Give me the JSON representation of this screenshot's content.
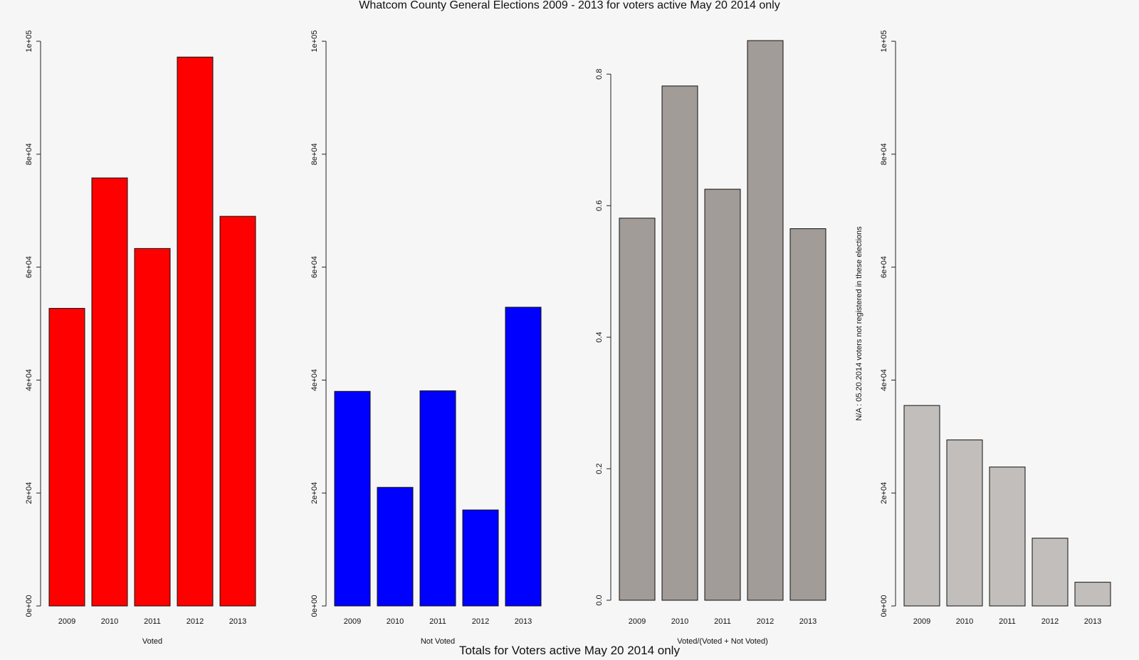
{
  "title": "Whatcom County General Elections 2009 - 2013 for voters active May 20 2014 only",
  "subtitle": "Totals for Voters active May 20 2014 only",
  "chart_data": [
    {
      "type": "bar",
      "categories": [
        "2009",
        "2010",
        "2011",
        "2012",
        "2013"
      ],
      "values": [
        52700,
        75800,
        63300,
        97200,
        69000
      ],
      "xlabel": "Voted",
      "ylabel": "",
      "ylim": [
        0,
        100000
      ],
      "yticks": [
        "0e+00",
        "2e+04",
        "4e+04",
        "6e+04",
        "8e+04",
        "1e+05"
      ],
      "color": "#ff0000"
    },
    {
      "type": "bar",
      "categories": [
        "2009",
        "2010",
        "2011",
        "2012",
        "2013"
      ],
      "values": [
        38000,
        21000,
        38100,
        17000,
        52900
      ],
      "xlabel": "Not Voted",
      "ylabel": "",
      "ylim": [
        0,
        100000
      ],
      "yticks": [
        "0e+00",
        "2e+04",
        "4e+04",
        "6e+04",
        "8e+04",
        "1e+05"
      ],
      "color": "#0000ff"
    },
    {
      "type": "bar",
      "categories": [
        "2009",
        "2010",
        "2011",
        "2012",
        "2013"
      ],
      "values": [
        0.581,
        0.782,
        0.625,
        0.851,
        0.565
      ],
      "xlabel": "Voted/(Voted + Not Voted)",
      "ylabel": "",
      "ylim": [
        0,
        0.85
      ],
      "yticks": [
        "0.0",
        "0.2",
        "0.4",
        "0.6",
        "0.8"
      ],
      "color": "#a19c97"
    },
    {
      "type": "bar",
      "categories": [
        "2009",
        "2010",
        "2011",
        "2012",
        "2013"
      ],
      "values": [
        35500,
        29400,
        24600,
        12000,
        4200
      ],
      "xlabel": "",
      "ylabel": "N/A : 05.20.2014 voters not registered in these elections",
      "ylim": [
        0,
        100000
      ],
      "yticks": [
        "0e+00",
        "2e+04",
        "4e+04",
        "6e+04",
        "8e+04",
        "1e+05"
      ],
      "color": "#c2bebb"
    }
  ]
}
